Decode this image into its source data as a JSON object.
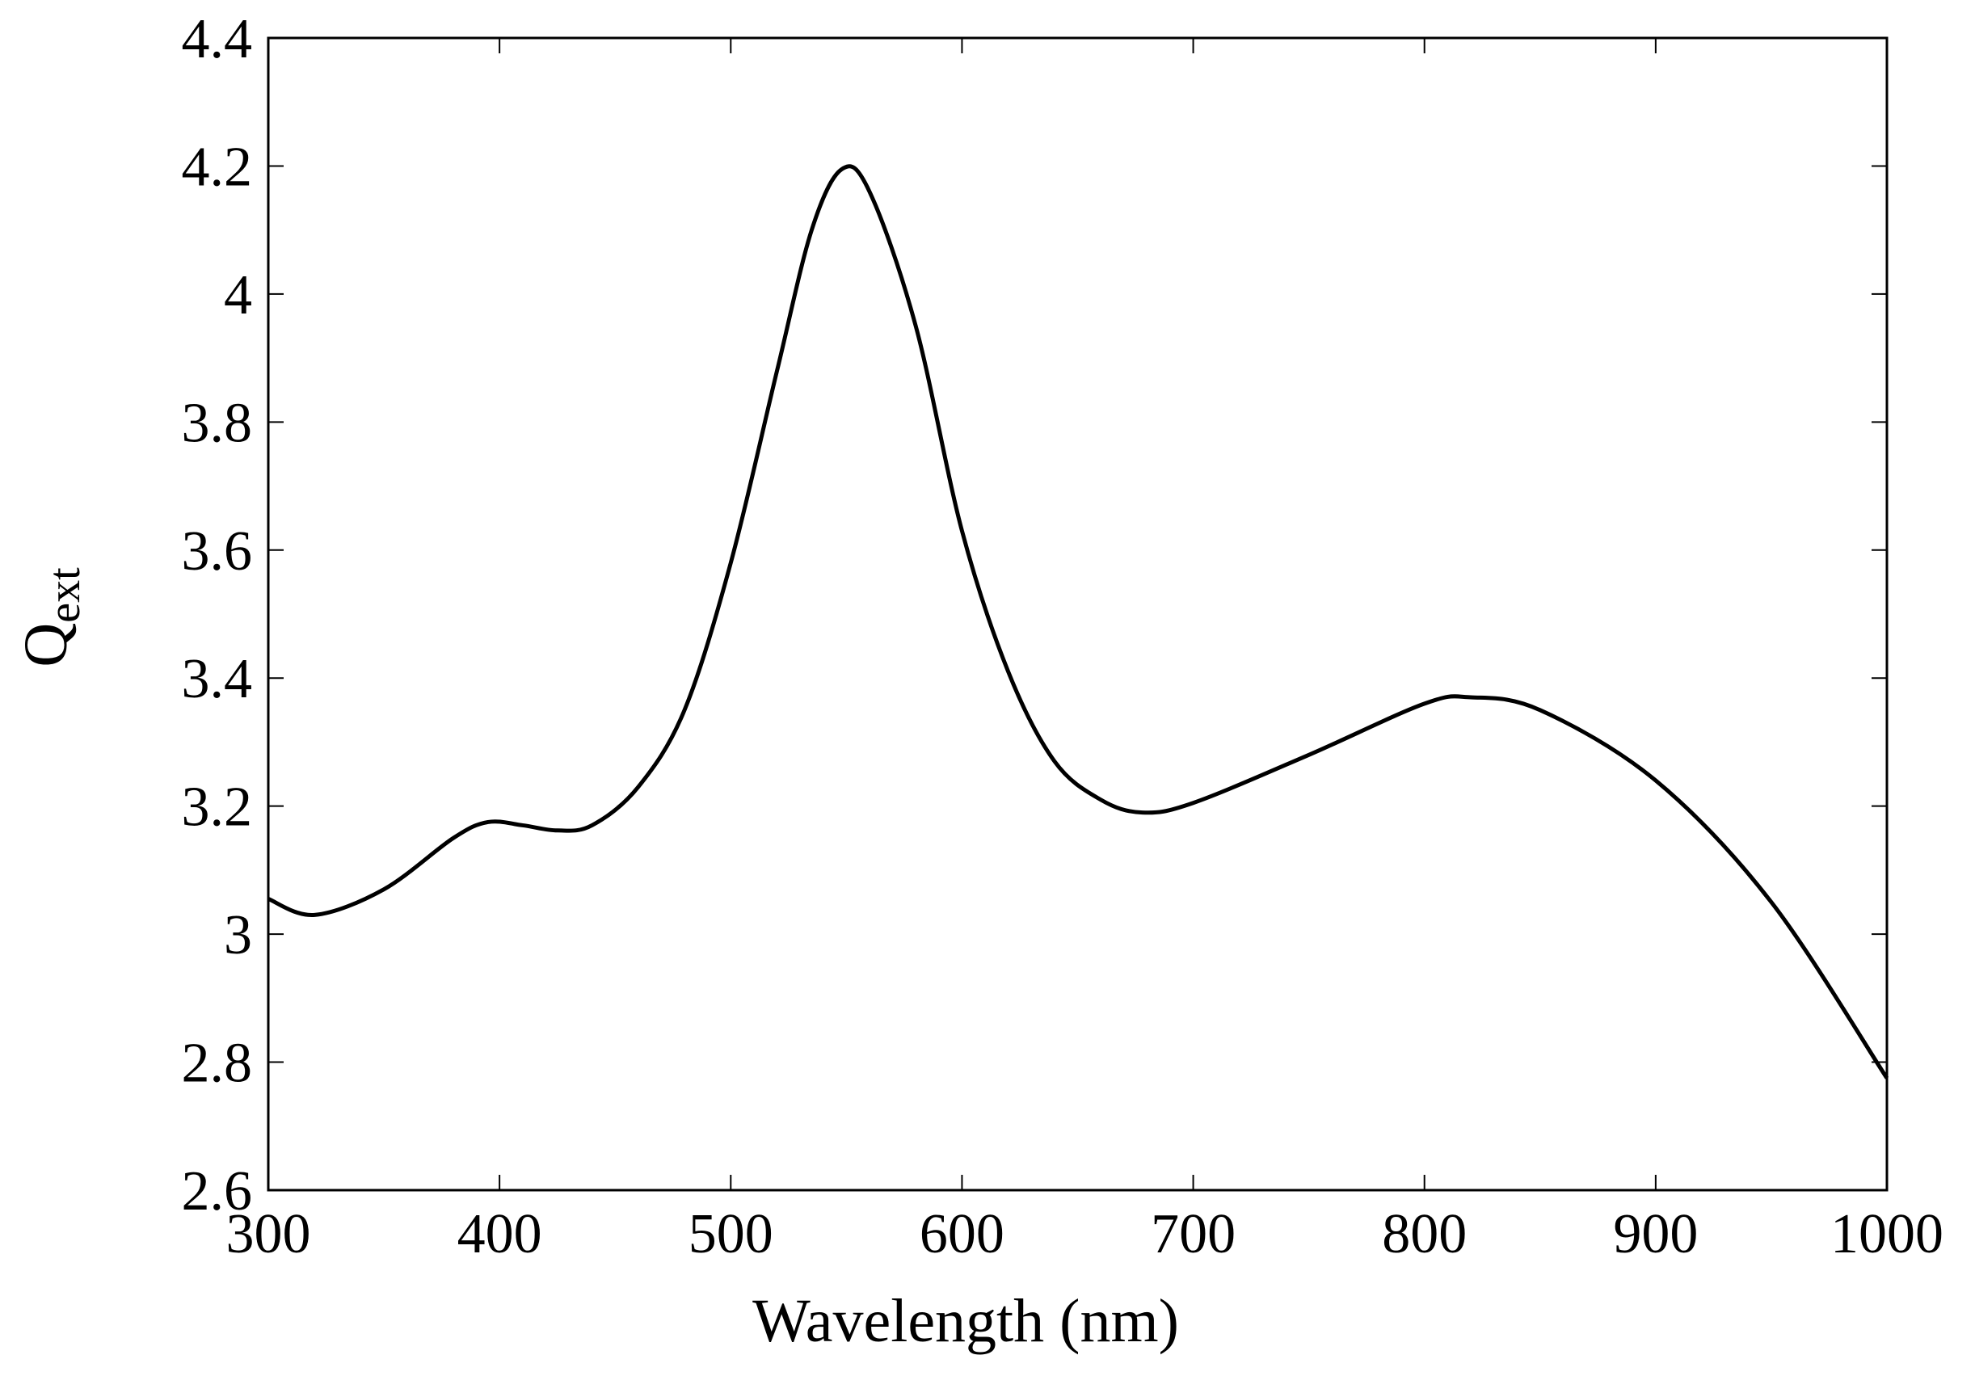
{
  "chart_data": {
    "type": "line",
    "xlabel": "Wavelength (nm)",
    "ylabel": "Q",
    "ylabel_subscript": "ext",
    "x": [
      300,
      320,
      350,
      380,
      395,
      410,
      425,
      440,
      460,
      480,
      500,
      520,
      535,
      548,
      560,
      580,
      600,
      620,
      640,
      660,
      678,
      700,
      750,
      800,
      820,
      850,
      900,
      950,
      1000
    ],
    "series": [
      {
        "color": "#000000",
        "values": [
          3.055,
          3.03,
          3.07,
          3.15,
          3.175,
          3.17,
          3.162,
          3.17,
          3.23,
          3.35,
          3.58,
          3.88,
          4.1,
          4.195,
          4.16,
          3.95,
          3.63,
          3.41,
          3.27,
          3.21,
          3.19,
          3.205,
          3.28,
          3.36,
          3.37,
          3.35,
          3.24,
          3.05,
          2.775
        ]
      }
    ],
    "xlim": [
      300,
      1000
    ],
    "ylim": [
      2.6,
      4.4
    ],
    "xticks": [
      300,
      400,
      500,
      600,
      700,
      800,
      900,
      1000
    ],
    "yticks": [
      2.6,
      2.8,
      3,
      3.2,
      3.4,
      3.6,
      3.8,
      4,
      4.2,
      4.4
    ]
  }
}
